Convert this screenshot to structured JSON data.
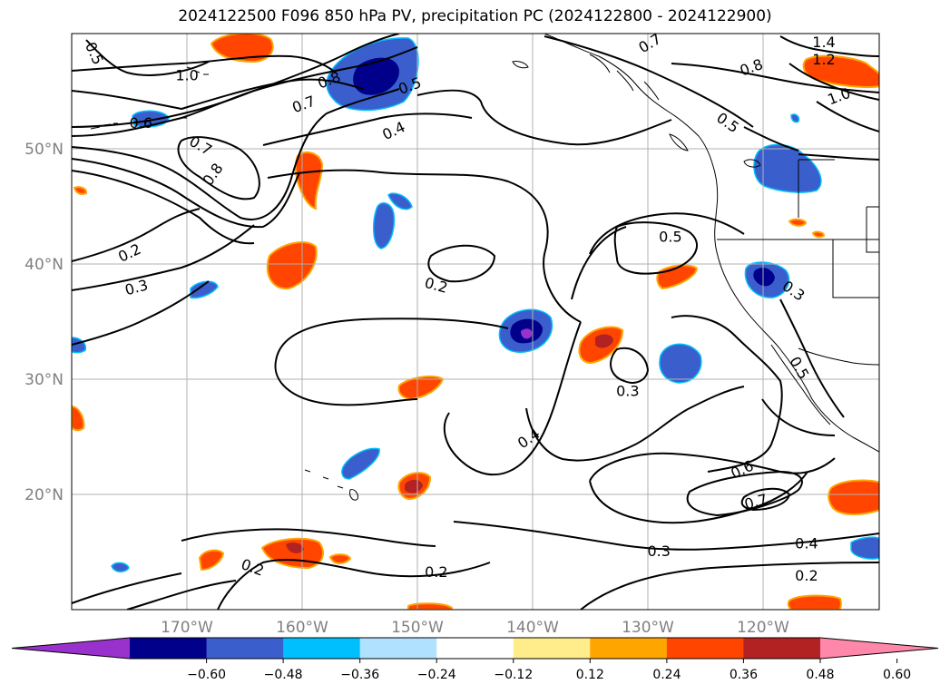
{
  "title": "2024122500 F096 850 hPa PV, precipitation PC (2024122800 - 2024122900)",
  "map": {
    "lon_range": [
      -180,
      -110
    ],
    "lat_range": [
      10,
      60
    ],
    "lon_ticks": [
      {
        "value": -170,
        "label": "170°W"
      },
      {
        "value": -160,
        "label": "160°W"
      },
      {
        "value": -150,
        "label": "150°W"
      },
      {
        "value": -140,
        "label": "140°W"
      },
      {
        "value": -130,
        "label": "130°W"
      },
      {
        "value": -120,
        "label": "120°W"
      }
    ],
    "lat_ticks": [
      {
        "value": 50,
        "label": "50°N"
      },
      {
        "value": 40,
        "label": "40°N"
      },
      {
        "value": 30,
        "label": "30°N"
      },
      {
        "value": 20,
        "label": "20°N"
      }
    ],
    "gridlines": true,
    "colors": {
      "tick": "#808080",
      "grid": "#b0b0b0",
      "contour": "#000000",
      "coast": "#000000"
    }
  },
  "contour_labels": [
    {
      "text": "0.5",
      "lon": -178.0,
      "lat": 58.3,
      "rot": 65
    },
    {
      "text": "1.0",
      "lon": -170.0,
      "lat": 56.4,
      "rot": 0
    },
    {
      "text": "0.8",
      "lon": -157.7,
      "lat": 56.0,
      "rot": -20
    },
    {
      "text": "0.7",
      "lon": -159.9,
      "lat": 53.9,
      "rot": -20
    },
    {
      "text": "0.5",
      "lon": -150.7,
      "lat": 55.5,
      "rot": -20
    },
    {
      "text": "0.4",
      "lon": -152.1,
      "lat": 51.6,
      "rot": -25
    },
    {
      "text": "0.6",
      "lon": -174.0,
      "lat": 52.3,
      "rot": 0
    },
    {
      "text": "0.7",
      "lon": -168.8,
      "lat": 50.3,
      "rot": 30
    },
    {
      "text": "0.8",
      "lon": -167.8,
      "lat": 47.8,
      "rot": -55
    },
    {
      "text": "0.2",
      "lon": -175.0,
      "lat": 41.0,
      "rot": -25
    },
    {
      "text": "0.3",
      "lon": -174.4,
      "lat": 38.0,
      "rot": -15
    },
    {
      "text": "0.2",
      "lon": -148.4,
      "lat": 38.2,
      "rot": 15
    },
    {
      "text": "0.5",
      "lon": -128.1,
      "lat": 42.4,
      "rot": 0
    },
    {
      "text": "0.3",
      "lon": -117.4,
      "lat": 37.7,
      "rot": 35
    },
    {
      "text": "0.5",
      "lon": -116.9,
      "lat": 31.0,
      "rot": 60
    },
    {
      "text": "0.3",
      "lon": -131.8,
      "lat": 29.0,
      "rot": 0
    },
    {
      "text": "0.4",
      "lon": -140.4,
      "lat": 24.9,
      "rot": -35
    },
    {
      "text": "0.6",
      "lon": -121.9,
      "lat": 22.2,
      "rot": -25
    },
    {
      "text": "0.7",
      "lon": -120.7,
      "lat": 19.4,
      "rot": -15
    },
    {
      "text": "0.4",
      "lon": -116.3,
      "lat": 15.8,
      "rot": 0
    },
    {
      "text": "0.3",
      "lon": -129.1,
      "lat": 15.1,
      "rot": 0
    },
    {
      "text": "0.2",
      "lon": -116.3,
      "lat": 13.0,
      "rot": 0
    },
    {
      "text": "0.2",
      "lon": -148.4,
      "lat": 13.3,
      "rot": 0
    },
    {
      "text": "0.2",
      "lon": -164.3,
      "lat": 13.7,
      "rot": 20
    },
    {
      "text": "0.7",
      "lon": -129.9,
      "lat": 59.2,
      "rot": -30
    },
    {
      "text": "0.8",
      "lon": -121.1,
      "lat": 57.1,
      "rot": -20
    },
    {
      "text": "1.4",
      "lon": -114.8,
      "lat": 59.3,
      "rot": 0
    },
    {
      "text": "1.2",
      "lon": -114.8,
      "lat": 57.8,
      "rot": 0
    },
    {
      "text": "1.0",
      "lon": -113.5,
      "lat": 54.6,
      "rot": -20
    },
    {
      "text": "0.5",
      "lon": -123.1,
      "lat": 52.3,
      "rot": 35
    }
  ],
  "colorbar": {
    "ticks": [
      "−0.60",
      "−0.48",
      "−0.36",
      "−0.24",
      "−0.12",
      "0.12",
      "0.24",
      "0.36",
      "0.48",
      "0.60"
    ],
    "colors": [
      "#9932cc",
      "#00008b",
      "#3a5fcd",
      "#00bfff",
      "#b0e2ff",
      "#ffffff",
      "#ffec8b",
      "#ffa500",
      "#ff4500",
      "#b22222",
      "#ff88aa"
    ]
  }
}
